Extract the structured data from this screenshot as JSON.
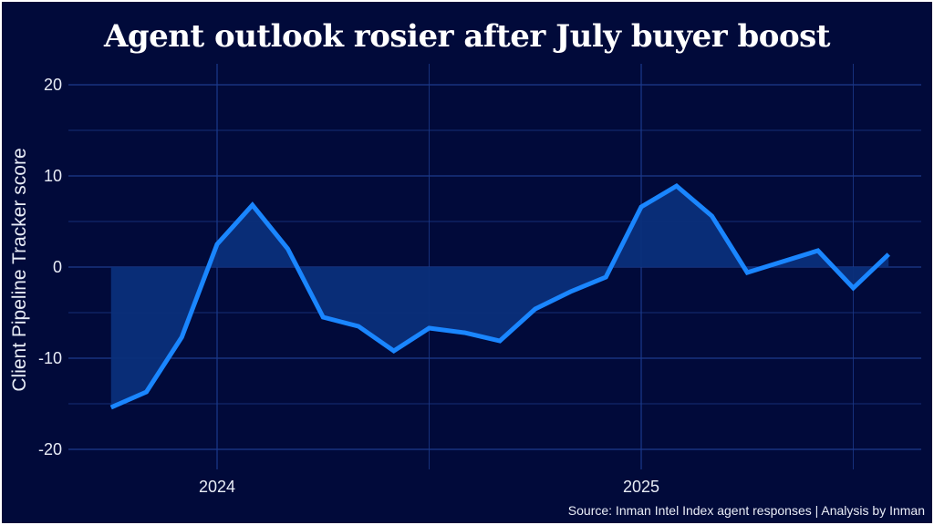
{
  "chart_data": {
    "type": "area",
    "title": "Agent outlook rosier after July buyer boost",
    "ylabel": "Client Pipeline Tracker score",
    "xlabel": "",
    "source": "Source: Inman Intel Index agent responses | Analysis by Inman",
    "x": [
      "2023-10",
      "2023-11",
      "2023-12",
      "2024-01",
      "2024-02",
      "2024-03",
      "2024-04",
      "2024-05",
      "2024-06",
      "2024-07",
      "2024-08",
      "2024-09",
      "2024-10",
      "2024-11",
      "2024-12",
      "2025-01",
      "2025-02",
      "2025-03",
      "2025-04",
      "2025-05",
      "2025-06",
      "2025-07",
      "2025-08"
    ],
    "values": [
      -15.4,
      -13.7,
      -7.7,
      2.5,
      6.8,
      2.0,
      -5.5,
      -6.5,
      -9.2,
      -6.7,
      -7.2,
      -8.1,
      -4.6,
      -2.7,
      -1.1,
      6.6,
      8.9,
      5.6,
      -0.6,
      0.6,
      1.8,
      -2.3,
      1.4
    ],
    "yticks": [
      20,
      10,
      0,
      -10,
      -20
    ],
    "ytick_labels": [
      "20",
      "10",
      "0",
      "-10",
      "-20"
    ],
    "xticks": [
      "2024-01",
      "2025-01"
    ],
    "xtick_labels": [
      "2024",
      "2025"
    ],
    "ylim": [
      -22.2,
      22.3
    ],
    "grid": true,
    "colors": {
      "background": "#010a3a",
      "line": "#1a86ff",
      "fill": "#0a2f7a",
      "grid": "#1c3a8c"
    }
  }
}
